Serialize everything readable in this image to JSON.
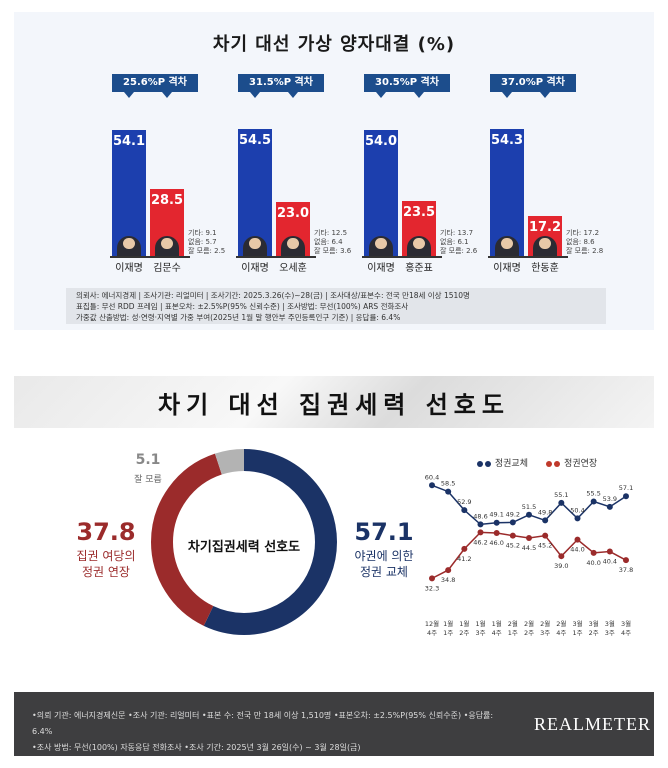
{
  "top": {
    "title": "차기 대선 가상 양자대결 (%)",
    "matchups": [
      {
        "gap": "25.6%P 격차",
        "a_name": "이재명",
        "a_val": "54.1",
        "b_name": "김문수",
        "b_val": "28.5",
        "other": "기타: 9.1",
        "none": "없음: 5.7",
        "dk": "잘 모름: 2.5"
      },
      {
        "gap": "31.5%P 격차",
        "a_name": "이재명",
        "a_val": "54.5",
        "b_name": "오세훈",
        "b_val": "23.0",
        "other": "기타: 12.5",
        "none": "없음: 6.4",
        "dk": "잘 모름: 3.6"
      },
      {
        "gap": "30.5%P 격차",
        "a_name": "이재명",
        "a_val": "54.0",
        "b_name": "홍준표",
        "b_val": "23.5",
        "other": "기타: 13.7",
        "none": "없음: 6.1",
        "dk": "잘 모름: 2.6"
      },
      {
        "gap": "37.0%P 격차",
        "a_name": "이재명",
        "a_val": "54.3",
        "b_name": "한동훈",
        "b_val": "17.2",
        "other": "기타: 17.2",
        "none": "없음: 8.6",
        "dk": "잘 모름: 2.8"
      }
    ],
    "methodology": [
      "의뢰사: 에너지경제 | 조사기관: 리얼미터 | 조사기간: 2025.3.26(수)~28(금) | 조사대상/표본수: 전국 만18세 이상 1510명",
      "표집틀: 무선 RDD 프레임 | 표본오차: ±2.5%P(95% 신뢰수준) | 조사방법: 무선(100%) ARS 전화조사",
      "가중값 산출방법: 성·연령·지역별 가중 부여(2025년 1월 말 행안부 주민등록인구 기준) | 응답률: 6.4%"
    ]
  },
  "bottom": {
    "title": "차기 대선 집권세력 선호도",
    "center_label": "차기집권세력 선호도",
    "left_value": "37.8",
    "left_label_1": "집권 여당의",
    "left_label_2": "정권 연장",
    "right_value": "57.1",
    "right_label_1": "야권에 의한",
    "right_label_2": "정권 교체",
    "dk_value": "5.1",
    "dk_label": "잘 모름",
    "legend_change": "정권교체",
    "legend_extend": "정권연장",
    "notes_1": "•의뢰 기관: 에너지경제신문 •조사 기관: 리얼미터 •표본 수: 전국 만 18세 이상 1,510명 •표본오차: ±2.5%P(95% 신뢰수준) •응답률: 6.4%",
    "notes_2": "•조사 방법: 무선(100%) 자동응답 전화조사 •조사 기간: 2025년 3월 26일(수) ~ 3월 28일(금)",
    "brand": "REALMETER"
  },
  "colors": {
    "blue_bar": "#1c3fae",
    "red_bar": "#e3262f",
    "navy": "#1b3366",
    "maroon": "#9b2b2b",
    "gray": "#b3b3b3"
  },
  "chart_data": [
    {
      "type": "bar",
      "title": "차기 대선 가상 양자대결 (%)",
      "categories": [
        "이재명 vs 김문수",
        "이재명 vs 오세훈",
        "이재명 vs 홍준표",
        "이재명 vs 한동훈"
      ],
      "series": [
        {
          "name": "이재명",
          "values": [
            54.1,
            54.5,
            54.0,
            54.3
          ]
        },
        {
          "name": "상대 후보",
          "values": [
            28.5,
            23.0,
            23.5,
            17.2
          ]
        }
      ],
      "ylim": [
        0,
        60
      ]
    },
    {
      "type": "pie",
      "title": "차기 대선 집권세력 선호도",
      "labels": [
        "야권에 의한 정권 교체",
        "집권 여당의 정권 연장",
        "잘 모름"
      ],
      "values": [
        57.1,
        37.8,
        5.1
      ]
    },
    {
      "type": "line",
      "x": [
        "12월 4주",
        "1월 1주",
        "1월 2주",
        "1월 3주",
        "1월 4주",
        "2월 1주",
        "2월 2주",
        "2월 3주",
        "2월 4주",
        "3월 1주",
        "3월 2주",
        "3월 3주",
        "3월 4주"
      ],
      "series": [
        {
          "name": "정권교체",
          "values": [
            60.4,
            58.5,
            52.9,
            48.6,
            49.1,
            49.2,
            51.5,
            49.8,
            55.1,
            50.4,
            55.5,
            53.9,
            57.1
          ]
        },
        {
          "name": "정권연장",
          "values": [
            32.3,
            34.8,
            41.2,
            46.2,
            46.0,
            45.2,
            44.5,
            45.2,
            39.0,
            44.0,
            40.0,
            40.4,
            37.8
          ]
        }
      ],
      "ylim": [
        30,
        62
      ]
    }
  ]
}
